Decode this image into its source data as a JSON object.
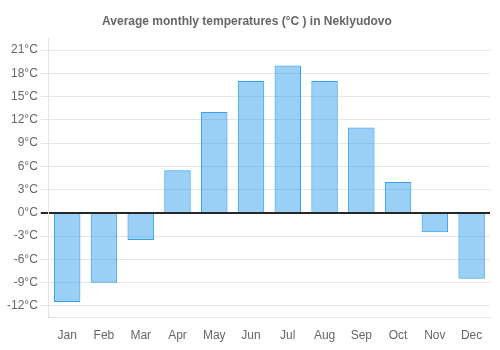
{
  "chart_data": {
    "type": "bar",
    "title": "Average monthly temperatures (°C ) in Neklyudovo",
    "categories": [
      "Jan",
      "Feb",
      "Mar",
      "Apr",
      "May",
      "Jun",
      "Jul",
      "Aug",
      "Sep",
      "Oct",
      "Nov",
      "Dec"
    ],
    "values": [
      -11.5,
      -9.0,
      -3.5,
      5.5,
      13.0,
      17.0,
      19.0,
      17.0,
      11.0,
      4.0,
      -2.5,
      -8.5
    ],
    "ylim": [
      -13.5,
      22.5
    ],
    "yticks": [
      {
        "value": -12,
        "label": "-12°C"
      },
      {
        "value": -9,
        "label": "-9°C"
      },
      {
        "value": -6,
        "label": "-6°C"
      },
      {
        "value": -3,
        "label": "-3°C"
      },
      {
        "value": 0,
        "label": "0°C"
      },
      {
        "value": 3,
        "label": "3°C"
      },
      {
        "value": 6,
        "label": "6°C"
      },
      {
        "value": 9,
        "label": "9°C"
      },
      {
        "value": 12,
        "label": "12°C"
      },
      {
        "value": 15,
        "label": "15°C"
      },
      {
        "value": 18,
        "label": "18°C"
      },
      {
        "value": 21,
        "label": "21°C"
      }
    ],
    "grid": true
  }
}
